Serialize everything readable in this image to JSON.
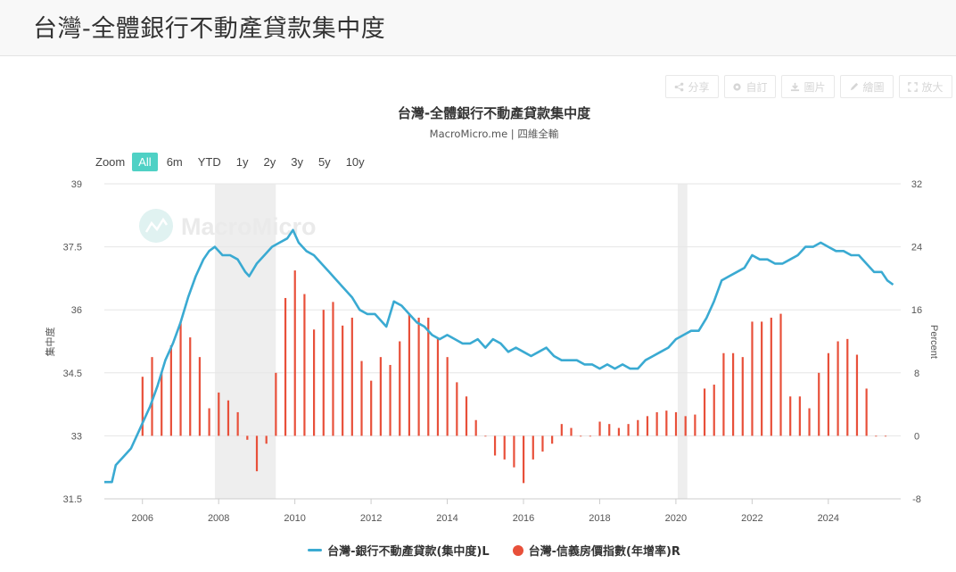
{
  "page": {
    "title": "台灣-全體銀行不動產貸款集中度"
  },
  "toolbar": {
    "share": "分享",
    "subscribe": "自訂",
    "image": "圖片",
    "draw": "繪圖",
    "zoom": "放大"
  },
  "zoom": {
    "label": "Zoom",
    "options": [
      "All",
      "6m",
      "YTD",
      "1y",
      "2y",
      "3y",
      "5y",
      "10y"
    ],
    "active": "All"
  },
  "watermark": "MacroMicro",
  "colors": {
    "line": "#3aaad2",
    "bar": "#e8503a",
    "active_zoom": "#4fd1c5",
    "recession": "#eeeeee"
  },
  "chart_data": {
    "type": "line",
    "title": "台灣-全體銀行不動產貸款集中度",
    "subtitle": "MacroMicro.me | 四維全輸",
    "x_ticks": [
      "2006",
      "2008",
      "2010",
      "2012",
      "2014",
      "2016",
      "2018",
      "2020",
      "2022",
      "2024"
    ],
    "xlim": [
      2005,
      2025.9
    ],
    "y_left": {
      "label": "集中度",
      "ticks": [
        "31.5",
        "33",
        "34.5",
        "36",
        "37.5",
        "39"
      ],
      "lim": [
        31.5,
        39
      ]
    },
    "y_right": {
      "label": "Percent",
      "ticks": [
        "-8",
        "0",
        "8",
        "16",
        "24",
        "32"
      ],
      "lim": [
        -8,
        32
      ]
    },
    "shaded_periods": [
      [
        2007.9,
        2009.5
      ],
      [
        2020.05,
        2020.3
      ]
    ],
    "legend": [
      "台灣-銀行不動產貸款(集中度)L",
      "台灣-信義房價指數(年增率)R"
    ],
    "series": [
      {
        "name": "台灣-銀行不動產貸款(集中度)L",
        "kind": "line",
        "axis": "left",
        "x": [
          2005.0,
          2005.2,
          2005.3,
          2005.5,
          2005.7,
          2005.9,
          2006.0,
          2006.2,
          2006.4,
          2006.6,
          2006.8,
          2007.0,
          2007.2,
          2007.4,
          2007.6,
          2007.75,
          2007.9,
          2008.1,
          2008.3,
          2008.5,
          2008.7,
          2008.8,
          2009.0,
          2009.2,
          2009.4,
          2009.6,
          2009.8,
          2009.95,
          2010.1,
          2010.3,
          2010.5,
          2010.7,
          2010.9,
          2011.1,
          2011.3,
          2011.5,
          2011.7,
          2011.9,
          2012.1,
          2012.3,
          2012.4,
          2012.6,
          2012.8,
          2013.0,
          2013.2,
          2013.4,
          2013.6,
          2013.8,
          2014.0,
          2014.2,
          2014.4,
          2014.6,
          2014.8,
          2015.0,
          2015.2,
          2015.4,
          2015.6,
          2015.8,
          2016.0,
          2016.2,
          2016.4,
          2016.6,
          2016.8,
          2017.0,
          2017.2,
          2017.4,
          2017.6,
          2017.8,
          2018.0,
          2018.2,
          2018.4,
          2018.6,
          2018.8,
          2019.0,
          2019.2,
          2019.4,
          2019.6,
          2019.8,
          2020.0,
          2020.2,
          2020.4,
          2020.6,
          2020.8,
          2021.0,
          2021.2,
          2021.4,
          2021.6,
          2021.8,
          2022.0,
          2022.2,
          2022.4,
          2022.6,
          2022.8,
          2023.0,
          2023.2,
          2023.4,
          2023.6,
          2023.8,
          2024.0,
          2024.2,
          2024.4,
          2024.6,
          2024.8,
          2025.0,
          2025.2,
          2025.4,
          2025.55,
          2025.7
        ],
        "y": [
          31.9,
          31.9,
          32.3,
          32.5,
          32.7,
          33.1,
          33.3,
          33.7,
          34.2,
          34.8,
          35.2,
          35.7,
          36.3,
          36.8,
          37.2,
          37.4,
          37.5,
          37.3,
          37.3,
          37.2,
          36.9,
          36.8,
          37.1,
          37.3,
          37.5,
          37.6,
          37.7,
          37.9,
          37.6,
          37.4,
          37.3,
          37.1,
          36.9,
          36.7,
          36.5,
          36.3,
          36.0,
          35.9,
          35.9,
          35.7,
          35.6,
          36.2,
          36.1,
          35.9,
          35.7,
          35.6,
          35.4,
          35.3,
          35.4,
          35.3,
          35.2,
          35.2,
          35.3,
          35.1,
          35.3,
          35.2,
          35.0,
          35.1,
          35.0,
          34.9,
          35.0,
          35.1,
          34.9,
          34.8,
          34.8,
          34.8,
          34.7,
          34.7,
          34.6,
          34.7,
          34.6,
          34.7,
          34.6,
          34.6,
          34.8,
          34.9,
          35.0,
          35.1,
          35.3,
          35.4,
          35.5,
          35.5,
          35.8,
          36.2,
          36.7,
          36.8,
          36.9,
          37.0,
          37.3,
          37.2,
          37.2,
          37.1,
          37.1,
          37.2,
          37.3,
          37.5,
          37.5,
          37.6,
          37.5,
          37.4,
          37.4,
          37.3,
          37.3,
          37.1,
          36.9,
          36.9,
          36.7,
          36.6
        ]
      },
      {
        "name": "台灣-信義房價指數(年增率)R",
        "kind": "bar",
        "axis": "right",
        "x": [
          2006.0,
          2006.25,
          2006.5,
          2006.75,
          2007.0,
          2007.25,
          2007.5,
          2007.75,
          2008.0,
          2008.25,
          2008.5,
          2008.75,
          2009.0,
          2009.25,
          2009.5,
          2009.75,
          2010.0,
          2010.25,
          2010.5,
          2010.75,
          2011.0,
          2011.25,
          2011.5,
          2011.75,
          2012.0,
          2012.25,
          2012.5,
          2012.75,
          2013.0,
          2013.25,
          2013.5,
          2013.75,
          2014.0,
          2014.25,
          2014.5,
          2014.75,
          2015.0,
          2015.25,
          2015.5,
          2015.75,
          2016.0,
          2016.25,
          2016.5,
          2016.75,
          2017.0,
          2017.25,
          2017.5,
          2017.75,
          2018.0,
          2018.25,
          2018.5,
          2018.75,
          2019.0,
          2019.25,
          2019.5,
          2019.75,
          2020.0,
          2020.25,
          2020.5,
          2020.75,
          2021.0,
          2021.25,
          2021.5,
          2021.75,
          2022.0,
          2022.25,
          2022.5,
          2022.75,
          2023.0,
          2023.25,
          2023.5,
          2023.75,
          2024.0,
          2024.25,
          2024.5,
          2024.75,
          2025.0,
          2025.25,
          2025.5
        ],
        "y": [
          7.5,
          10.0,
          8.0,
          11.5,
          14.5,
          12.5,
          10.0,
          3.5,
          5.5,
          4.5,
          3.0,
          -0.5,
          -4.5,
          -1.0,
          8.0,
          17.5,
          21.0,
          18.0,
          13.5,
          16.0,
          17.0,
          14.0,
          15.0,
          9.5,
          7.0,
          10.0,
          9.0,
          12.0,
          15.5,
          15.0,
          15.0,
          12.5,
          10.0,
          6.8,
          5.0,
          2.0,
          0.0,
          -2.5,
          -3.0,
          -4.0,
          -6.0,
          -3.0,
          -2.0,
          -1.0,
          1.5,
          1.0,
          0.0,
          0.0,
          1.8,
          1.5,
          1.0,
          1.5,
          2.0,
          2.5,
          3.0,
          3.2,
          3.0,
          2.5,
          2.7,
          6.0,
          6.5,
          10.5,
          10.5,
          10.0,
          14.5,
          14.5,
          15.0,
          15.5,
          5.0,
          5.0,
          3.5,
          8.0,
          10.5,
          12.0,
          12.3,
          10.3,
          6.0,
          0.0,
          0.0
        ]
      }
    ]
  }
}
